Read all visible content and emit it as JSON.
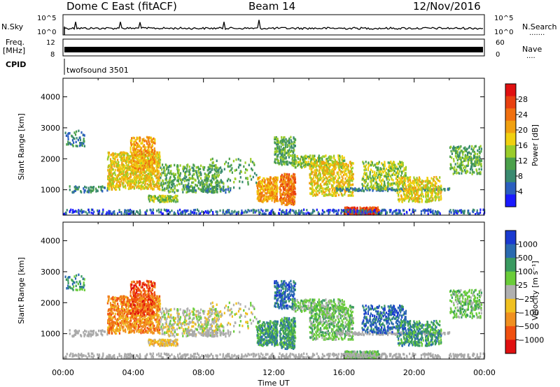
{
  "header": {
    "title": "Dome C East (fitACF)",
    "beam": "Beam 14",
    "date": "12/Nov/2016"
  },
  "panels": {
    "nsky_label": "N.Sky",
    "nsearch_label": "N.Search",
    "nsky_ticks": [
      "10^5",
      "10^0"
    ],
    "nsearch_ticks": [
      "10^5",
      "10^0"
    ],
    "freq_label_1": "Freq.",
    "freq_label_2": "[MHz]",
    "freq_ticks": [
      "12",
      "8"
    ],
    "nave_label": "Nave",
    "nave_ticks": [
      "60",
      "0"
    ],
    "cpid_label": "CPID",
    "cpid_text": "twofsound 3501"
  },
  "chart_data": [
    {
      "type": "heatmap",
      "name": "power",
      "ylabel": "Slant Range [km]",
      "xlabel": "Time UT",
      "x_ticks": [
        "00:00",
        "04:00",
        "08:00",
        "12:00",
        "16:00",
        "20:00",
        "00:00"
      ],
      "y_ticks": [
        1000,
        2000,
        3000,
        4000
      ],
      "ylim": [
        180,
        4600
      ],
      "xlim_hours": [
        0,
        24
      ],
      "colorbar": {
        "label": "Power [dB]",
        "ticks": [
          4,
          8,
          12,
          16,
          20,
          24,
          28
        ],
        "range": [
          0,
          32
        ]
      }
    },
    {
      "type": "heatmap",
      "name": "velocity",
      "ylabel": "Slant Range [km]",
      "xlabel": "Time UT",
      "x_ticks": [
        "00:00",
        "04:00",
        "08:00",
        "12:00",
        "16:00",
        "20:00",
        "00:00"
      ],
      "y_ticks": [
        1000,
        2000,
        3000,
        4000
      ],
      "ylim": [
        180,
        4600
      ],
      "xlim_hours": [
        0,
        24
      ],
      "colorbar": {
        "label": "Velocity [m s⁻¹]",
        "ticks": [
          "1000",
          "500",
          "100",
          "25",
          "−25",
          "−100",
          "−500",
          "−1000"
        ]
      }
    }
  ],
  "xaxis_title": "Time UT",
  "colors": {
    "power_scale": [
      "#1a1aff",
      "#2b5fbf",
      "#3a8a70",
      "#4aa04a",
      "#9acc2a",
      "#f0d010",
      "#f0a010",
      "#f07010",
      "#e84010",
      "#e01010"
    ],
    "velocity_scale": [
      "#1a3ad0",
      "#2a6ab0",
      "#3a9a60",
      "#6acc3a",
      "#b0b0b0",
      "#f0c020",
      "#f09020",
      "#f05010",
      "#e01010"
    ],
    "ground_scatter": "#aaaaaa"
  }
}
